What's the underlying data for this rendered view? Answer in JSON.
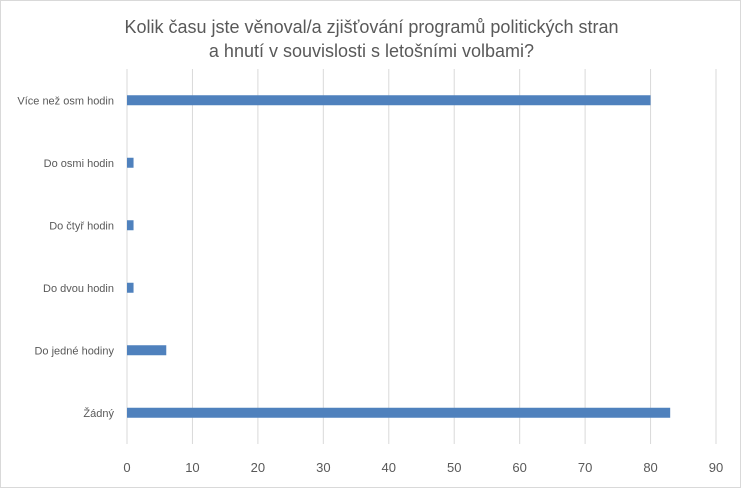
{
  "chart_data": {
    "type": "bar",
    "orientation": "horizontal",
    "title": [
      "Kolik času jste věnoval/a zjišťování programů politických stran",
      "a hnutí v souvislosti s letošními volbami?"
    ],
    "categories": [
      "Více než osm hodin",
      "Do osmi hodin",
      "Do čtyř hodin",
      "Do dvou hodin",
      "Do jedné hodiny",
      "Žádný"
    ],
    "values": [
      80,
      1,
      1,
      1,
      6,
      83
    ],
    "xlim": [
      0,
      90
    ],
    "xticks": [
      "0",
      "10",
      "20",
      "30",
      "40",
      "50",
      "60",
      "70",
      "80",
      "90"
    ],
    "xlabel": "",
    "ylabel": "",
    "grid": "vertical",
    "legend": "none",
    "bar_color": "#4f81bd",
    "grid_color": "#d9d9d9"
  }
}
